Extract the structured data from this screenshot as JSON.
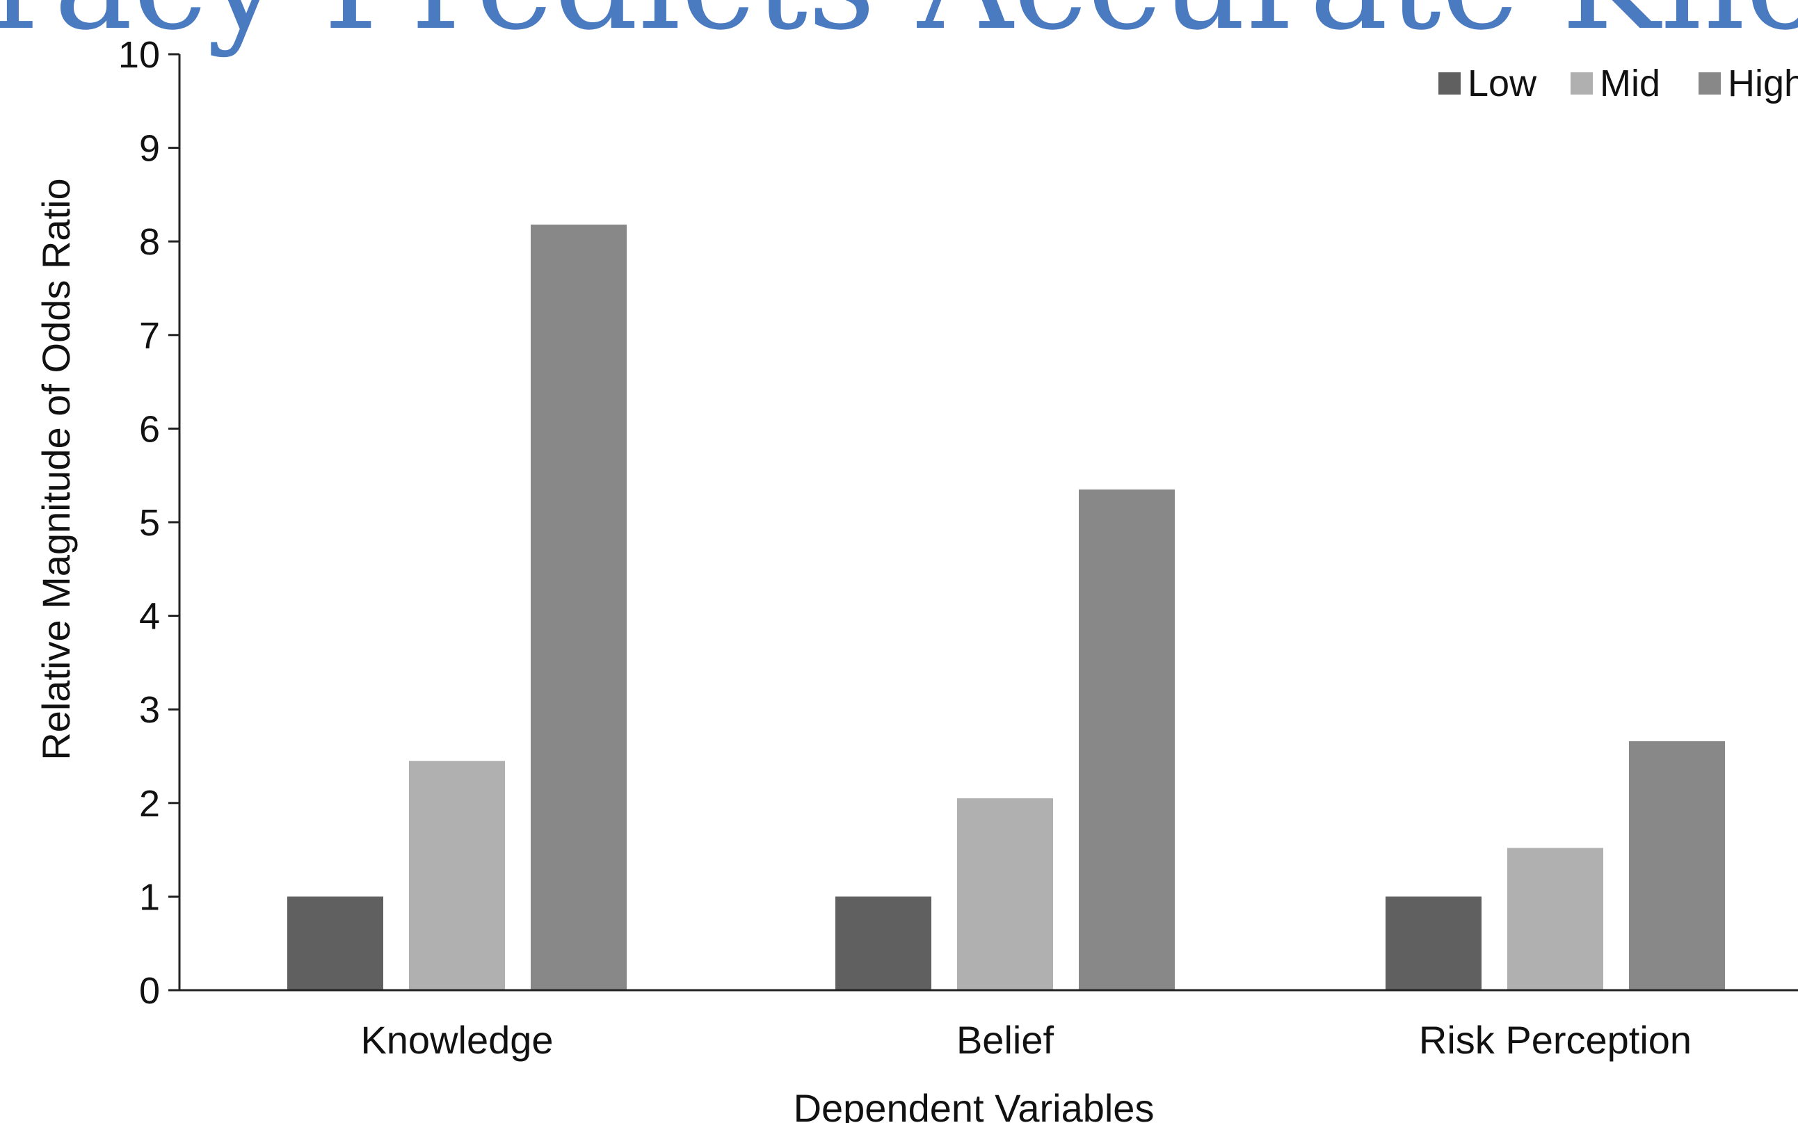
{
  "chart_data": {
    "type": "bar",
    "title": "…iteracy Predicts Accurate Knowl…",
    "xlabel": "Dependent Variables",
    "ylabel": "Relative Magnitude of Odds Ratio",
    "ylim": [
      0,
      10
    ],
    "yticks": [
      "0",
      "1",
      "2",
      "3",
      "4",
      "5",
      "6",
      "7",
      "8",
      "9",
      "10"
    ],
    "categories": [
      "Knowledge",
      "Belief",
      "Risk Perception"
    ],
    "series": [
      {
        "name": "Low",
        "color": "#606060",
        "values": [
          1,
          1,
          1
        ]
      },
      {
        "name": "Mid",
        "color": "#b0b0b0",
        "values": [
          2.45,
          2.05,
          1.52
        ]
      },
      {
        "name": "High",
        "color": "#888888",
        "values": [
          8.18,
          5.35,
          2.66
        ]
      }
    ],
    "grid": false,
    "legend": "top-right"
  }
}
